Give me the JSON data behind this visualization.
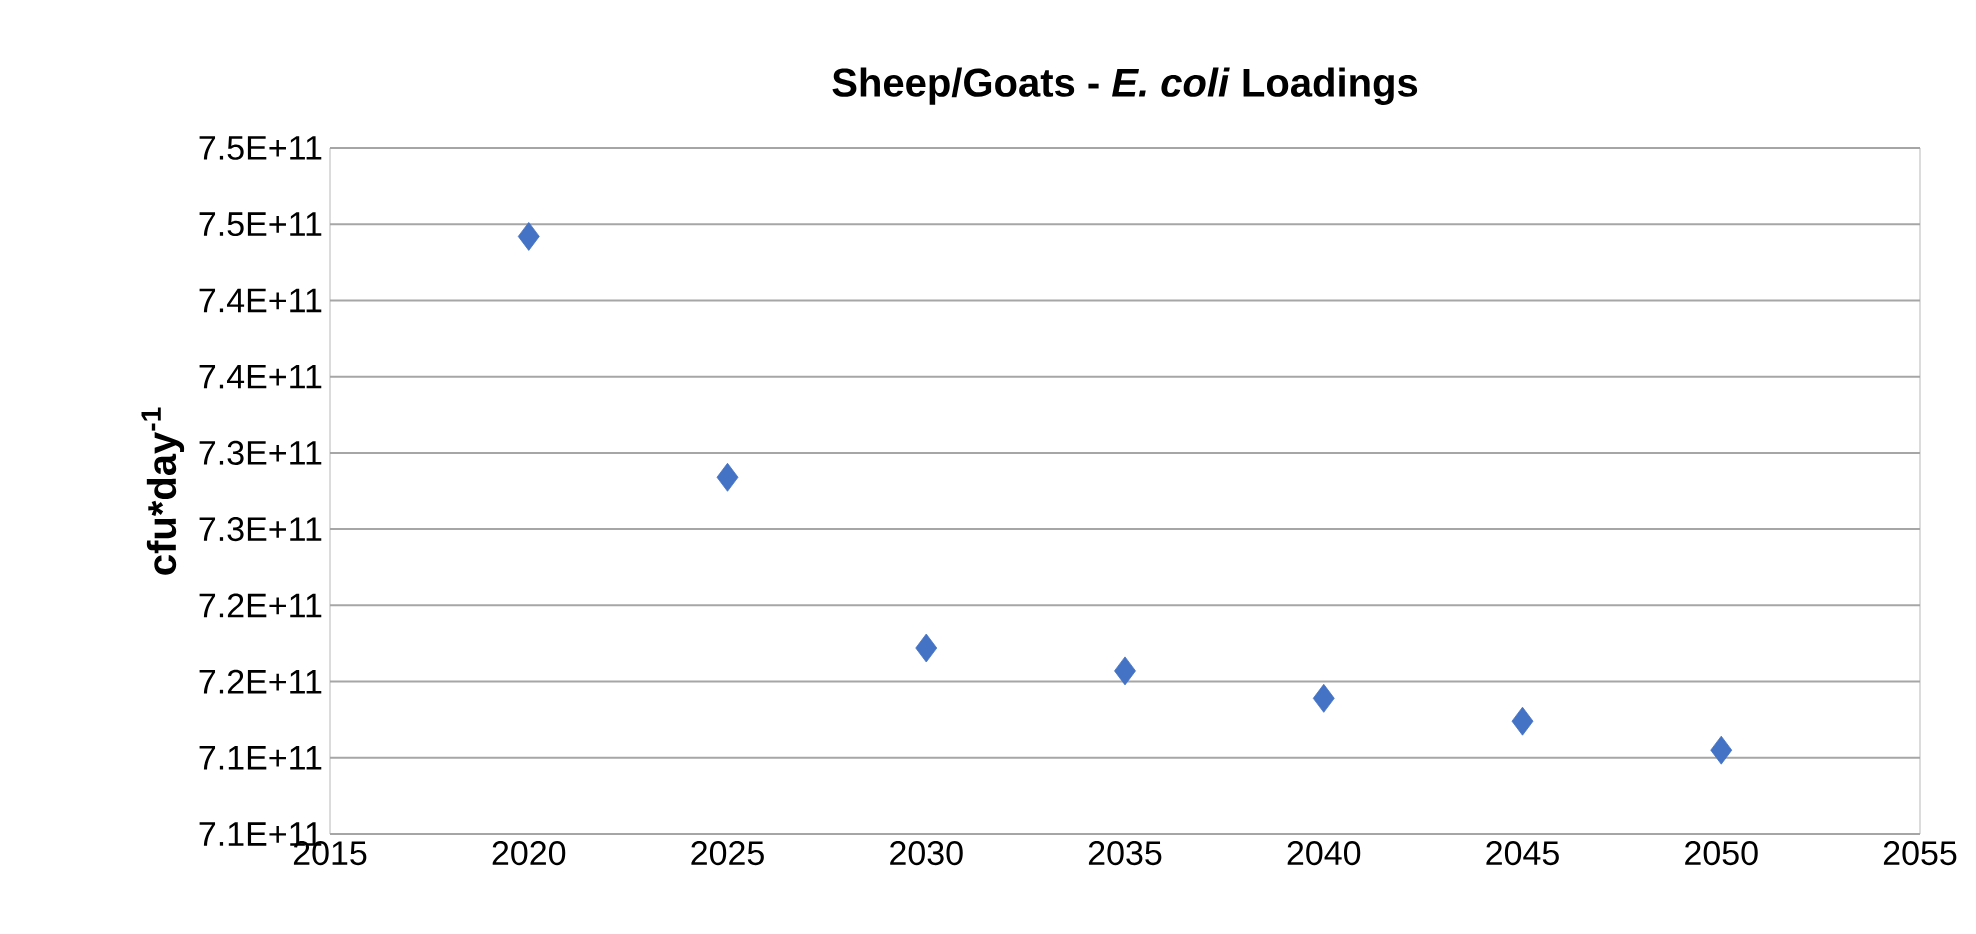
{
  "chart_data": {
    "type": "scatter",
    "title": "Sheep/Goats - *E. coli* Loadings",
    "ylabel": "cfu*day$^{-1}$",
    "x": [
      2020,
      2025,
      2030,
      2035,
      2040,
      2045,
      2050
    ],
    "values": [
      744200000000.0,
      728400000000.0,
      717200000000.0,
      715700000000.0,
      713900000000.0,
      712400000000.0,
      710500000000.0
    ],
    "color": "#4472c4",
    "marker": "diamond",
    "xlim": [
      2015,
      2055
    ],
    "xticks": [
      2015,
      2020,
      2025,
      2030,
      2035,
      2040,
      2045,
      2050,
      2055
    ],
    "ylim": [
      705000000000.0,
      750000000000.0
    ],
    "yticks": [
      {
        "value": 705000000000.0,
        "label": "7.1E+11"
      },
      {
        "value": 710000000000.0,
        "label": "7.1E+11"
      },
      {
        "value": 715000000000.0,
        "label": "7.2E+11"
      },
      {
        "value": 720000000000.0,
        "label": "7.2E+11"
      },
      {
        "value": 725000000000.0,
        "label": "7.3E+11"
      },
      {
        "value": 730000000000.0,
        "label": "7.3E+11"
      },
      {
        "value": 735000000000.0,
        "label": "7.4E+11"
      },
      {
        "value": 740000000000.0,
        "label": "7.4E+11"
      },
      {
        "value": 745000000000.0,
        "label": "7.5E+11"
      },
      {
        "value": 750000000000.0,
        "label": "7.5E+11"
      }
    ],
    "grid": "y"
  }
}
